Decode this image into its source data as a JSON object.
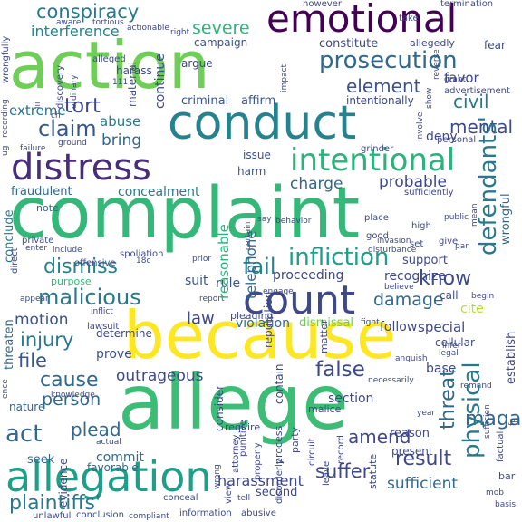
{
  "colors": {
    "background": "#ffffff",
    "palette": [
      "#fde725",
      "#b5de2b",
      "#6ece58",
      "#35b779",
      "#1f9e89",
      "#26828e",
      "#31688e",
      "#3e4989",
      "#482878",
      "#440154"
    ]
  },
  "words": {
    "complaint": "complaint",
    "because": "because",
    "allege": "allege",
    "action": "action",
    "conduct": "conduct",
    "allegation": "allegation",
    "emotional": "emotional",
    "distress": "distress",
    "count": "count",
    "intentional": "intentional",
    "prosecution": "prosecution",
    "conspiracy": "conspiracy",
    "severe": "severe",
    "interference": "interference",
    "campaign": "campaign",
    "constitute": "constitute",
    "element": "element",
    "extreme": "extreme",
    "tort": "tort",
    "civil": "civil",
    "claim": "claim",
    "abuse": "abuse",
    "mental": "mental",
    "bring": "bring",
    "charge": "charge",
    "probable": "probable",
    "concealment": "concealment",
    "fraudulent": "fraudulent",
    "infliction": "infliction",
    "dismiss": "dismiss",
    "fail": "fail",
    "malicious": "malicious",
    "know": "know",
    "damage": "damage",
    "injury": "injury",
    "motion": "motion",
    "law": "law",
    "file": "file",
    "cause": "cause",
    "outrageous": "outrageous",
    "person": "person",
    "false": "false",
    "magazine": "magazine",
    "act": "act",
    "plead": "plead",
    "physical": "physical",
    "threat": "threat",
    "amend": "amend",
    "result": "result",
    "suffer": "suffer",
    "sufficient": "sufficient",
    "harassment": "harassment",
    "plaintiffs_possessive": "plaintiffs'",
    "defendants_possessive": "defendants'",
    "proceeding": "proceeding",
    "recognize": "recognize",
    "support": "support",
    "criminal": "criminal",
    "affirm": "affirm",
    "deny": "deny",
    "favor": "favor",
    "note": "note",
    "conclude": "conclude",
    "suit": "suit",
    "rule": "rule",
    "issue": "issue",
    "harm": "harm",
    "reasonable": "reasonable",
    "telephone": "telephone",
    "dismissal": "dismissal",
    "violation": "violation",
    "follow": "follow",
    "special": "special",
    "call": "call",
    "cite": "cite",
    "base": "base",
    "section": "section",
    "second": "second",
    "reason": "reason",
    "present": "present",
    "commit": "commit",
    "favorable": "favorable",
    "seek": "seek",
    "evidence": "evidence",
    "prove": "prove",
    "determine": "determine",
    "continue": "continue",
    "harass": "harass",
    "alleged": "alleged",
    "argue": "argue",
    "intentionally": "intentionally",
    "wrongful": "wrongful",
    "cellular": "cellular",
    "establish": "establish",
    "private": "private",
    "material": "material",
    "threaten": "threaten",
    "nature": "nature",
    "purpose": "purpose",
    "spoliation": "spoliation",
    "offensive": "offensive",
    "lawsuit": "lawsuit",
    "pleading": "pleading",
    "reputation": "reputation",
    "contain": "contain",
    "consider": "consider",
    "require": "require",
    "malice": "malice",
    "matter": "matter",
    "party": "party",
    "process": "process",
    "attorney": "attorney",
    "circuit": "circuit",
    "properly": "properly",
    "punitive": "punitive",
    "disorderly": "disorderly",
    "statute": "statute",
    "record": "record",
    "leave": "leave",
    "view": "view",
    "tell": "tell",
    "wrong": "wrong",
    "unlawful": "unlawful",
    "conclusion": "conclusion",
    "compliant": "compliant",
    "information": "information",
    "abusive": "abusive",
    "conceal": "conceal",
    "actual": "actual",
    "knowledge": "knowledge",
    "legal": "legal",
    "infer": "infer",
    "remand": "remand",
    "anguish": "anguish",
    "fight": "fight",
    "necessarily": "necessarily",
    "year": "year",
    "bar": "bar",
    "factual": "factual",
    "basis": "basis",
    "mob": "mob",
    "however": "however",
    "termination": "termination",
    "take": "take",
    "allegedly": "allegedly",
    "fear": "fear",
    "reverse": "reverse",
    "grant": "grant",
    "advertisement": "advertisement",
    "show": "show",
    "personal": "personal",
    "grinder": "grinder",
    "sufficiently": "sufficiently",
    "impact": "impact",
    "involve": "involve",
    "discovery": "discovery",
    "tortious": "tortious",
    "actionable": "actionable",
    "aware": "aware",
    "right": "right",
    "ordinary": "ordinary",
    "ground": "ground",
    "failure": "failure",
    "invasion": "invasion",
    "disturbance": "disturbance",
    "place": "place",
    "good": "good",
    "high": "high",
    "set": "set",
    "give": "give",
    "public": "public",
    "say": "say",
    "behavior": "behavior",
    "engage": "engage",
    "prior": "prior",
    "certain": "certain",
    "include": "include",
    "enter": "enter",
    "direct": "direct",
    "appear": "appear",
    "inflict": "inflict",
    "report": "report",
    "believe": "believe",
    "begin": "begin",
    "mean": "mean",
    "par": "par",
    "sufficien": "sufficien",
    "wrongfully": "wrongfully",
    "recording": "recording",
    "ch": "ch",
    "n18c": "18c",
    "n111": "111",
    "iii": "iii",
    "ence": "ence",
    "ug": "ug",
    "fp": "fp"
  }
}
